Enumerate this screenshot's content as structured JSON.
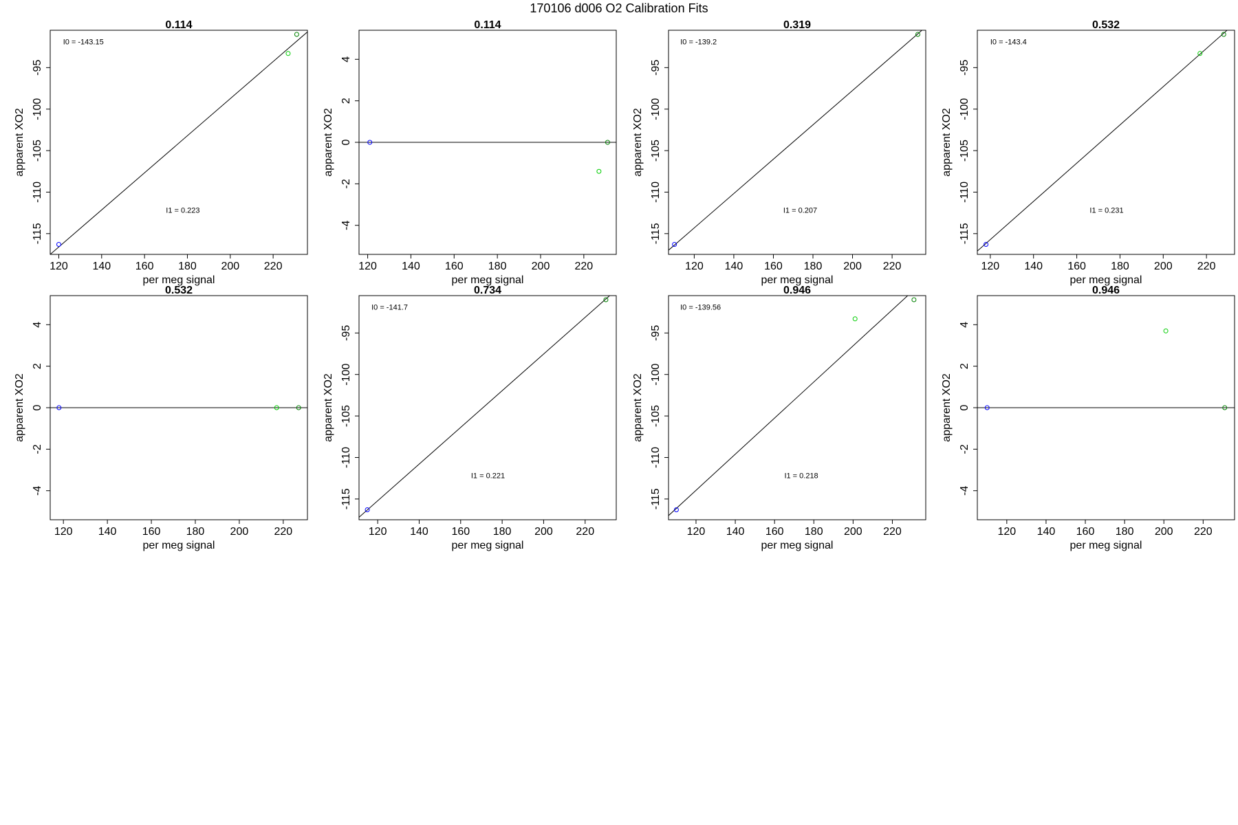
{
  "page": {
    "title": "170106   d006   O2 Calibration Fits"
  },
  "colors": {
    "axis": "#000000",
    "fit_line": "#000000",
    "blue_point": "#0000ff",
    "green_point": "#00cc00",
    "dark_green_point": "#008000"
  },
  "chart_data": [
    {
      "type": "scatter",
      "title": "0.114",
      "xlabel": "per meg signal",
      "ylabel": "apparent XO2",
      "xlim": [
        116,
        236
      ],
      "ylim": [
        -117.5,
        -90.5
      ],
      "xticks": [
        120,
        140,
        160,
        180,
        200,
        220
      ],
      "xtick_labels": [
        "120",
        "140",
        "160",
        "180",
        "200",
        "220"
      ],
      "yticks": [
        -115,
        -110,
        -105,
        -100,
        -95
      ],
      "ytick_labels": [
        "-115",
        "-110",
        "-105",
        "-100",
        "-95"
      ],
      "points": [
        {
          "x": 120,
          "y": -116.3,
          "color": "blue"
        },
        {
          "x": 227,
          "y": -93.3,
          "color": "green"
        },
        {
          "x": 231,
          "y": -91.0,
          "color": "darkgreen"
        }
      ],
      "fit_line": [
        [
          116,
          -117.5
        ],
        [
          236,
          -90.7
        ]
      ],
      "annotations": [
        {
          "text": "I0 =  -143.15",
          "x": 122,
          "y": -92.2
        },
        {
          "text": "I1 =  0.223",
          "x": 170,
          "y": -112.5
        }
      ]
    },
    {
      "type": "scatter",
      "title": "0.114",
      "xlabel": "per meg signal",
      "ylabel": "apparent XO2",
      "xlim": [
        116,
        235
      ],
      "ylim": [
        -5.4,
        5.4
      ],
      "xticks": [
        120,
        140,
        160,
        180,
        200,
        220
      ],
      "xtick_labels": [
        "120",
        "140",
        "160",
        "180",
        "200",
        "220"
      ],
      "yticks": [
        -4,
        -2,
        0,
        2,
        4
      ],
      "ytick_labels": [
        "-4",
        "-2",
        "0",
        "2",
        "4"
      ],
      "points": [
        {
          "x": 121,
          "y": 0,
          "color": "blue"
        },
        {
          "x": 227,
          "y": -1.4,
          "color": "green"
        },
        {
          "x": 231,
          "y": 0,
          "color": "darkgreen"
        }
      ],
      "fit_line": [
        [
          116,
          0
        ],
        [
          235,
          0
        ]
      ],
      "annotations": []
    },
    {
      "type": "scatter",
      "title": "0.319",
      "xlabel": "per meg signal",
      "ylabel": "apparent XO2",
      "xlim": [
        107,
        237
      ],
      "ylim": [
        -117.5,
        -90.5
      ],
      "xticks": [
        120,
        140,
        160,
        180,
        200,
        220
      ],
      "xtick_labels": [
        "120",
        "140",
        "160",
        "180",
        "200",
        "220"
      ],
      "yticks": [
        -115,
        -110,
        -105,
        -100,
        -95
      ],
      "ytick_labels": [
        "-115",
        "-110",
        "-105",
        "-100",
        "-95"
      ],
      "points": [
        {
          "x": 110,
          "y": -116.3,
          "color": "blue"
        },
        {
          "x": 233,
          "y": -91.0,
          "color": "darkgreen"
        }
      ],
      "fit_line": [
        [
          107,
          -117.0
        ],
        [
          237,
          -90.1
        ]
      ],
      "annotations": [
        {
          "text": "I0 =  -139.2",
          "x": 113,
          "y": -92.2
        },
        {
          "text": "I1 =  0.207",
          "x": 165,
          "y": -112.5
        }
      ]
    },
    {
      "type": "scatter",
      "title": "0.532",
      "xlabel": "per meg signal",
      "ylabel": "apparent XO2",
      "xlim": [
        114,
        233
      ],
      "ylim": [
        -117.5,
        -90.5
      ],
      "xticks": [
        120,
        140,
        160,
        180,
        200,
        220
      ],
      "xtick_labels": [
        "120",
        "140",
        "160",
        "180",
        "200",
        "220"
      ],
      "yticks": [
        -115,
        -110,
        -105,
        -100,
        -95
      ],
      "ytick_labels": [
        "-115",
        "-110",
        "-105",
        "-100",
        "-95"
      ],
      "points": [
        {
          "x": 118,
          "y": -116.3,
          "color": "blue"
        },
        {
          "x": 217,
          "y": -93.3,
          "color": "green"
        },
        {
          "x": 228,
          "y": -91.0,
          "color": "darkgreen"
        }
      ],
      "fit_line": [
        [
          114,
          -117.1
        ],
        [
          233,
          -89.7
        ]
      ],
      "annotations": [
        {
          "text": "I0 =  -143.4",
          "x": 120,
          "y": -92.2
        },
        {
          "text": "I1 =  0.231",
          "x": 166,
          "y": -112.5
        }
      ]
    },
    {
      "type": "scatter",
      "title": "0.532",
      "xlabel": "per meg signal",
      "ylabel": "apparent XO2",
      "xlim": [
        114,
        231
      ],
      "ylim": [
        -5.4,
        5.4
      ],
      "xticks": [
        120,
        140,
        160,
        180,
        200,
        220
      ],
      "xtick_labels": [
        "120",
        "140",
        "160",
        "180",
        "200",
        "220"
      ],
      "yticks": [
        -4,
        -2,
        0,
        2,
        4
      ],
      "ytick_labels": [
        "-4",
        "-2",
        "0",
        "2",
        "4"
      ],
      "points": [
        {
          "x": 118,
          "y": 0,
          "color": "blue"
        },
        {
          "x": 217,
          "y": 0,
          "color": "green"
        },
        {
          "x": 227,
          "y": 0,
          "color": "darkgreen"
        }
      ],
      "fit_line": [
        [
          114,
          0
        ],
        [
          231,
          0
        ]
      ],
      "annotations": []
    },
    {
      "type": "scatter",
      "title": "0.734",
      "xlabel": "per meg signal",
      "ylabel": "apparent XO2",
      "xlim": [
        111,
        235
      ],
      "ylim": [
        -117.5,
        -90.5
      ],
      "xticks": [
        120,
        140,
        160,
        180,
        200,
        220
      ],
      "xtick_labels": [
        "120",
        "140",
        "160",
        "180",
        "200",
        "220"
      ],
      "yticks": [
        -115,
        -110,
        -105,
        -100,
        -95
      ],
      "ytick_labels": [
        "-115",
        "-110",
        "-105",
        "-100",
        "-95"
      ],
      "points": [
        {
          "x": 115,
          "y": -116.3,
          "color": "blue"
        },
        {
          "x": 230,
          "y": -91.0,
          "color": "darkgreen"
        }
      ],
      "fit_line": [
        [
          111,
          -117.2
        ],
        [
          235,
          -89.8
        ]
      ],
      "annotations": [
        {
          "text": "I0 =  -141.7",
          "x": 117,
          "y": -92.2
        },
        {
          "text": "I1 =  0.221",
          "x": 165,
          "y": -112.5
        }
      ]
    },
    {
      "type": "scatter",
      "title": "0.946",
      "xlabel": "per meg signal",
      "ylabel": "apparent XO2",
      "xlim": [
        106,
        237
      ],
      "ylim": [
        -117.5,
        -90.5
      ],
      "xticks": [
        120,
        140,
        160,
        180,
        200,
        220
      ],
      "xtick_labels": [
        "120",
        "140",
        "160",
        "180",
        "200",
        "220"
      ],
      "yticks": [
        -115,
        -110,
        -105,
        -100,
        -95
      ],
      "ytick_labels": [
        "-115",
        "-110",
        "-105",
        "-100",
        "-95"
      ],
      "points": [
        {
          "x": 110,
          "y": -116.3,
          "color": "blue"
        },
        {
          "x": 201,
          "y": -93.3,
          "color": "green"
        },
        {
          "x": 231,
          "y": -91.0,
          "color": "darkgreen"
        }
      ],
      "fit_line": [
        [
          106,
          -117.0
        ],
        [
          237,
          -88.5
        ]
      ],
      "annotations": [
        {
          "text": "I0 =  -139.56",
          "x": 112,
          "y": -92.2
        },
        {
          "text": "I1 =  0.218",
          "x": 165,
          "y": -112.5
        }
      ]
    },
    {
      "type": "scatter",
      "title": "0.946",
      "xlabel": "per meg signal",
      "ylabel": "apparent XO2",
      "xlim": [
        105,
        236
      ],
      "ylim": [
        -5.4,
        5.4
      ],
      "xticks": [
        120,
        140,
        160,
        180,
        200,
        220
      ],
      "xtick_labels": [
        "120",
        "140",
        "160",
        "180",
        "200",
        "220"
      ],
      "yticks": [
        -4,
        -2,
        0,
        2,
        4
      ],
      "ytick_labels": [
        "-4",
        "-2",
        "0",
        "2",
        "4"
      ],
      "points": [
        {
          "x": 110,
          "y": 0,
          "color": "blue"
        },
        {
          "x": 201,
          "y": 3.7,
          "color": "green"
        },
        {
          "x": 231,
          "y": 0,
          "color": "darkgreen"
        }
      ],
      "fit_line": [
        [
          105,
          0
        ],
        [
          236,
          0
        ]
      ],
      "annotations": []
    }
  ]
}
